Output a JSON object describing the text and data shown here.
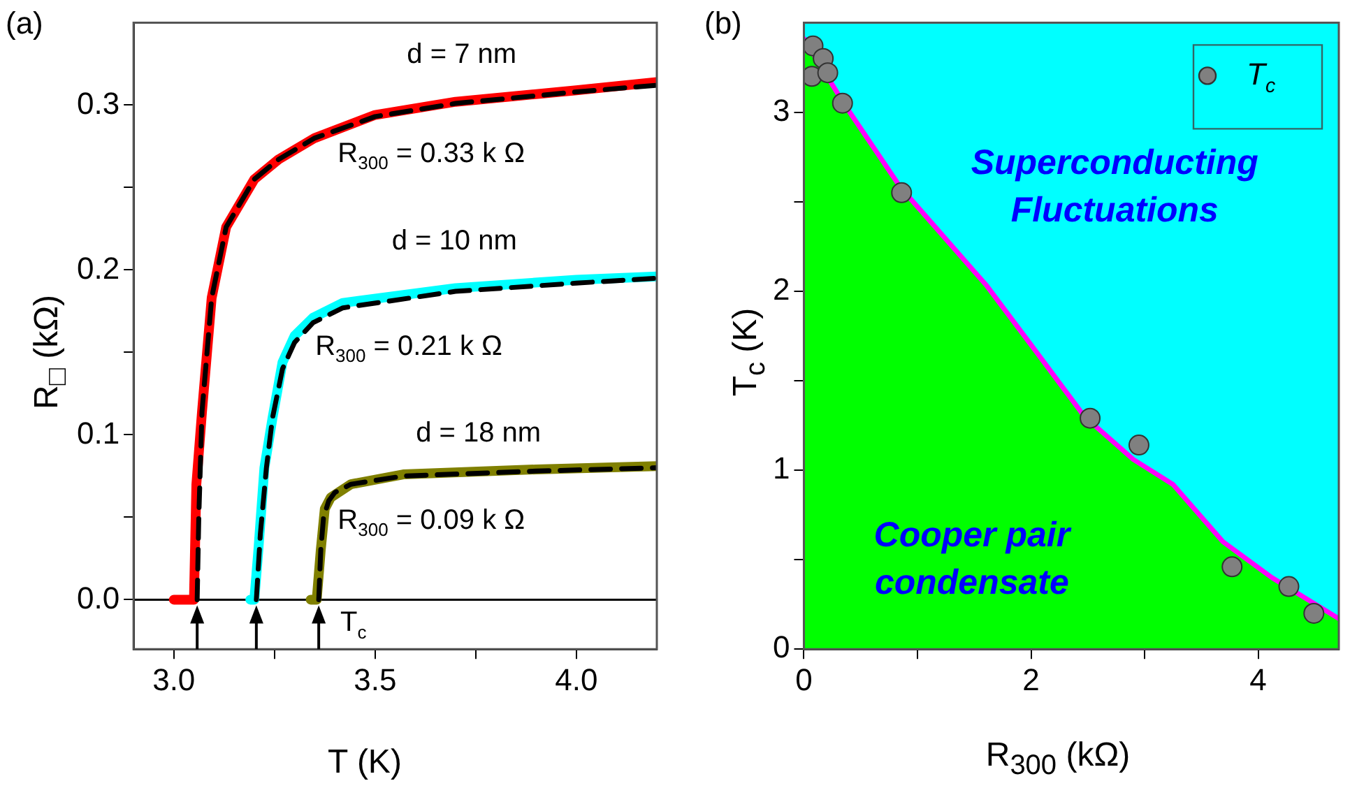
{
  "chart_data": [
    {
      "type": "line",
      "xlabel": "T (K)",
      "ylabel": "R$_{□}$ (kΩ)",
      "xlim": [
        2.9,
        4.2
      ],
      "ylim": [
        -0.03,
        0.35
      ],
      "xticks": [
        {
          "value": 3,
          "label": "3.0"
        },
        {
          "value": 3.25,
          "label": null
        },
        3.5,
        {
          "value": 3.75,
          "label": null
        },
        {
          "value": 4,
          "label": "4.0"
        }
      ],
      "yticks": [
        {
          "value": 0,
          "label": "0.0"
        },
        {
          "value": 0.05,
          "label": null
        },
        0.1,
        {
          "value": 0.15,
          "label": null
        },
        0.2,
        {
          "value": 0.25,
          "label": null
        },
        0.3
      ],
      "ref_lines": [
        {
          "axis": "y",
          "value": 0,
          "color": "#000000"
        }
      ],
      "annotations": [
        "(a)",
        "d = 7 nm",
        "R$_{300}$ = 0.33 k Ω",
        "d = 10 nm",
        "R$_{300}$ = 0.21 k Ω",
        "d = 18 nm",
        "R$_{300}$ = 0.09 k Ω",
        "T$_{c}$"
      ],
      "series": [
        {
          "color": "#ff0000",
          "x": [
            3.0,
            3.03,
            3.05,
            3.056,
            3.07,
            3.094,
            3.13,
            3.2,
            3.26,
            3.35,
            3.5,
            3.7,
            4.0,
            4.2
          ],
          "values": [
            0,
            0,
            0,
            0.07,
            0.114,
            0.183,
            0.226,
            0.255,
            0.267,
            0.28,
            0.294,
            0.302,
            0.309,
            0.314
          ]
        },
        {
          "color": "#00ffff",
          "x": [
            3.19,
            3.2,
            3.21,
            3.225,
            3.245,
            3.27,
            3.3,
            3.346,
            3.42,
            3.7,
            4.0,
            4.2
          ],
          "values": [
            0,
            0,
            0.03,
            0.08,
            0.11,
            0.144,
            0.16,
            0.171,
            0.18,
            0.189,
            0.194,
            0.196
          ]
        },
        {
          "color": "#808000",
          "x": [
            3.34,
            3.355,
            3.365,
            3.375,
            3.39,
            3.44,
            3.57,
            3.9,
            4.2
          ],
          "values": [
            0,
            0,
            0.03,
            0.055,
            0.062,
            0.07,
            0.076,
            0.079,
            0.081
          ]
        },
        {
          "color": "#000000",
          "line_style": "dashed",
          "x": [
            3.058,
            3.062,
            3.07,
            3.094,
            3.13,
            3.2,
            3.26,
            3.35,
            3.5,
            3.7,
            4.0,
            4.2
          ],
          "values": [
            0,
            0.05,
            0.114,
            0.183,
            0.226,
            0.255,
            0.267,
            0.28,
            0.293,
            0.301,
            0.308,
            0.312
          ]
        },
        {
          "color": "#000000",
          "line_style": "dashed",
          "x": [
            3.205,
            3.215,
            3.23,
            3.245,
            3.27,
            3.3,
            3.346,
            3.42,
            3.7,
            4.0,
            4.2
          ],
          "values": [
            0,
            0.04,
            0.08,
            0.11,
            0.14,
            0.156,
            0.168,
            0.177,
            0.187,
            0.192,
            0.195
          ]
        },
        {
          "color": "#000000",
          "line_style": "dashed",
          "x": [
            3.36,
            3.365,
            3.372,
            3.385,
            3.4,
            3.44,
            3.57,
            3.9,
            4.2
          ],
          "values": [
            0,
            0.03,
            0.05,
            0.06,
            0.065,
            0.07,
            0.075,
            0.078,
            0.08
          ]
        }
      ]
    },
    {
      "type": "scatter",
      "xlabel": "R$_{300}$ (kΩ)",
      "ylabel": "T$_{c}$ (K)",
      "xlim": [
        0,
        4.71
      ],
      "ylim": [
        0,
        3.5
      ],
      "xticks": [
        0,
        {
          "value": 1,
          "label": null
        },
        2,
        {
          "value": 3,
          "label": null
        },
        4
      ],
      "yticks": [
        0,
        {
          "value": 0.5,
          "label": null
        },
        1,
        {
          "value": 1.5,
          "label": null
        },
        2,
        {
          "value": 2.5,
          "label": null
        },
        3
      ],
      "bands": [
        {
          "axis": "y",
          "from": 0,
          "to": 3.5,
          "color": "#00ffff"
        }
      ],
      "legend": "top right",
      "annotations": [
        "(b)",
        "Superconducting Fluctuations",
        "Cooper pair condensate"
      ],
      "series": [
        {
          "type": "area",
          "color": "#00ff00",
          "x": [
            0,
            0.35,
            0.85,
            1.61,
            2.0,
            2.47,
            2.9,
            3.25,
            3.69,
            4.12,
            4.71
          ],
          "values": [
            3.41,
            3.05,
            2.58,
            2.03,
            1.7,
            1.3,
            1.06,
            0.92,
            0.6,
            0.4,
            0.17
          ]
        },
        {
          "type": "line",
          "color": "#ff00ff",
          "x": [
            0,
            0.35,
            0.85,
            1.61,
            2.0,
            2.47,
            2.9,
            3.25,
            3.69,
            4.12,
            4.71
          ],
          "values": [
            3.41,
            3.05,
            2.58,
            2.03,
            1.7,
            1.3,
            1.06,
            0.92,
            0.6,
            0.4,
            0.17
          ]
        },
        {
          "type": "scatter",
          "name": "T$_{c}$",
          "color": "#808080",
          "marker": "circle",
          "x": [
            0.08,
            0.17,
            0.07,
            0.21,
            0.34,
            0.86,
            2.52,
            2.95,
            3.77,
            4.27,
            4.49
          ],
          "values": [
            3.37,
            3.3,
            3.2,
            3.22,
            3.05,
            2.55,
            1.29,
            1.14,
            0.46,
            0.35,
            0.2
          ]
        }
      ]
    }
  ]
}
